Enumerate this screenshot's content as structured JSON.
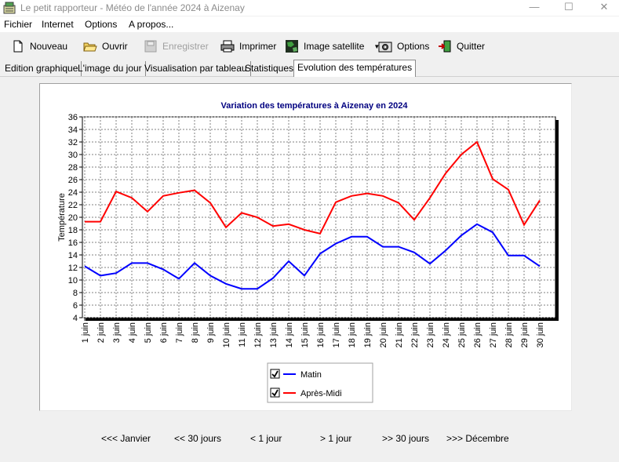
{
  "window": {
    "title": "Le petit rapporteur - Météo de l'année 2024 à Aizenay",
    "minimize": "—",
    "maximize": "☐",
    "close": "✕"
  },
  "menu": {
    "items": [
      "Fichier",
      "Internet",
      "Options",
      "A propos..."
    ]
  },
  "toolbar": {
    "nouveau": "Nouveau",
    "ouvrir": "Ouvrir",
    "enregistrer": "Enregistrer",
    "imprimer": "Imprimer",
    "satellite": "Image satellite",
    "options": "Options",
    "quitter": "Quitter"
  },
  "tabs": [
    {
      "label": "Edition graphique"
    },
    {
      "label": "L'image du jour"
    },
    {
      "label": "Visualisation par tableau"
    },
    {
      "label": "Statistiques"
    },
    {
      "label": "Evolution des températures"
    }
  ],
  "chart_data": {
    "type": "line",
    "title": "Variation des températures à Aizenay en 2024",
    "xlabel": "",
    "ylabel": "Température",
    "ylim": [
      4,
      36
    ],
    "yticks": [
      4,
      6,
      8,
      10,
      12,
      14,
      16,
      18,
      20,
      22,
      24,
      26,
      28,
      30,
      32,
      34,
      36
    ],
    "grid": true,
    "legend_position": "bottom-center",
    "categories": [
      "1 juin",
      "2 juin",
      "3 juin",
      "4 juin",
      "5 juin",
      "6 juin",
      "7 juin",
      "8 juin",
      "9 juin",
      "10 juin",
      "11 juin",
      "12 juin",
      "13 juin",
      "14 juin",
      "15 juin",
      "16 juin",
      "17 juin",
      "18 juin",
      "19 juin",
      "20 juin",
      "21 juin",
      "22 juin",
      "23 juin",
      "24 juin",
      "25 juin",
      "26 juin",
      "27 juin",
      "28 juin",
      "29 juin",
      "30 juin"
    ],
    "series": [
      {
        "name": "Matin",
        "color": "#0000ff",
        "values": [
          12.2,
          10.7,
          11.1,
          12.7,
          12.7,
          11.7,
          10.2,
          12.7,
          10.7,
          9.4,
          8.6,
          8.6,
          10.3,
          13.0,
          10.7,
          14.2,
          15.8,
          16.9,
          16.9,
          15.3,
          15.3,
          14.4,
          12.6,
          14.7,
          17.1,
          18.9,
          17.6,
          13.9,
          13.9,
          12.2
        ]
      },
      {
        "name": "Après-Midi",
        "color": "#ff0000",
        "values": [
          19.3,
          19.3,
          24.1,
          23.1,
          20.9,
          23.4,
          23.9,
          24.3,
          22.3,
          18.4,
          20.7,
          20.0,
          18.6,
          18.9,
          18.0,
          17.4,
          22.4,
          23.4,
          23.8,
          23.4,
          22.3,
          19.6,
          23.1,
          27.0,
          30.0,
          32.0,
          26.1,
          24.4,
          18.8,
          22.7
        ]
      }
    ]
  },
  "nav": {
    "janvier": "<<< Janvier",
    "back30": "<< 30 jours",
    "back1": "< 1 jour",
    "fwd1": "> 1 jour",
    "fwd30": ">> 30 jours",
    "decembre": ">>> Décembre"
  }
}
